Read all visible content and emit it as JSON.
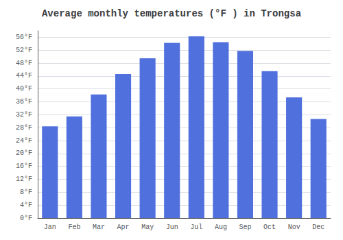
{
  "chart_data": {
    "type": "bar",
    "title": "Average monthly temperatures (°F ) in Trongsa",
    "categories": [
      "Jan",
      "Feb",
      "Mar",
      "Apr",
      "May",
      "Jun",
      "Jul",
      "Aug",
      "Sep",
      "Oct",
      "Nov",
      "Dec"
    ],
    "values": [
      28.4,
      31.5,
      38.3,
      44.6,
      49.5,
      54.3,
      56.3,
      54.5,
      51.8,
      45.5,
      37.4,
      30.7
    ],
    "ylim": [
      0,
      58
    ],
    "yticks": [
      {
        "value": 0,
        "label": "0°F"
      },
      {
        "value": 4,
        "label": "4°F"
      },
      {
        "value": 8,
        "label": "8°F"
      },
      {
        "value": 12,
        "label": "12°F"
      },
      {
        "value": 16,
        "label": "16°F"
      },
      {
        "value": 20,
        "label": "20°F"
      },
      {
        "value": 24,
        "label": "24°F"
      },
      {
        "value": 28,
        "label": "28°F"
      },
      {
        "value": 32,
        "label": "32°F"
      },
      {
        "value": 36,
        "label": "36°F"
      },
      {
        "value": 40,
        "label": "40°F"
      },
      {
        "value": 44,
        "label": "44°F"
      },
      {
        "value": 48,
        "label": "48°F"
      },
      {
        "value": 52,
        "label": "52°F"
      },
      {
        "value": 56,
        "label": "56°F"
      }
    ],
    "grid": true
  }
}
